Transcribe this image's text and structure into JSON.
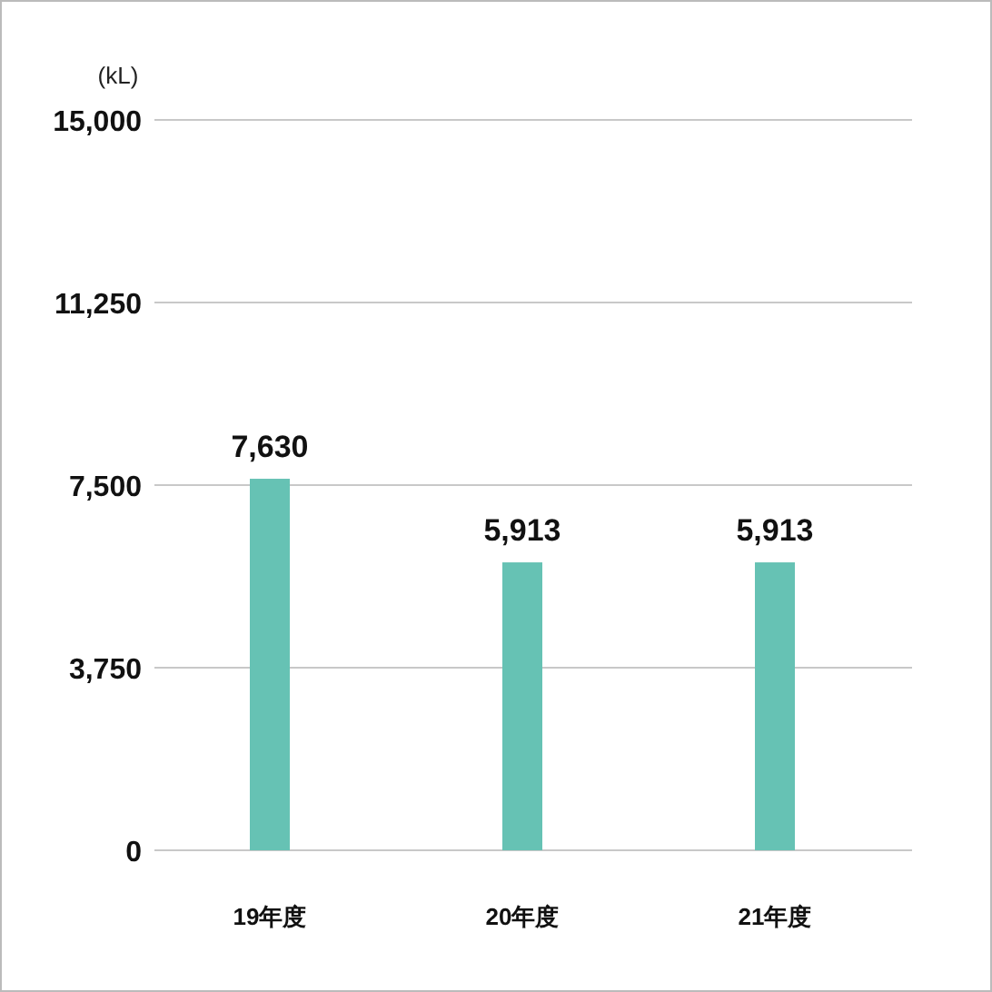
{
  "chart_data": {
    "type": "bar",
    "ylabel": "(kL)",
    "categories": [
      "19年度",
      "20年度",
      "21年度"
    ],
    "values": [
      7630,
      5913,
      5913
    ],
    "color": "#66c2b4",
    "ylim": [
      0,
      15000
    ],
    "yticks": [
      0,
      {
        "value": 3750,
        "label": "3,750"
      },
      {
        "value": 7500,
        "label": "7,500"
      },
      {
        "value": 11250,
        "label": "11,250"
      },
      {
        "value": 15000,
        "label": "15,000"
      }
    ],
    "grid": "y",
    "data_labels": true,
    "value_labels": [
      "7,630",
      "5,913",
      "5,913"
    ]
  }
}
